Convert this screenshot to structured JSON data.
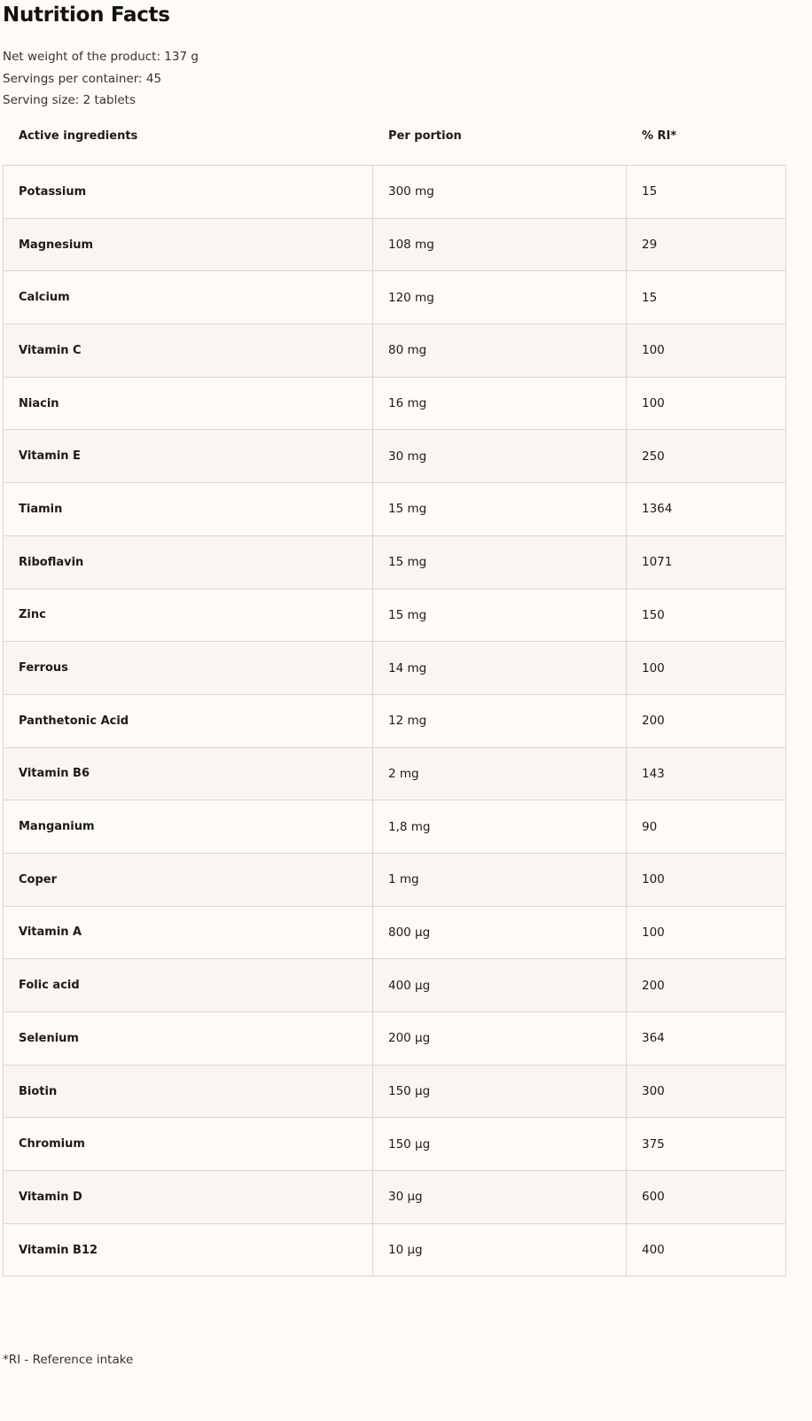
{
  "title": "Nutrition Facts",
  "net_weight": "Net weight of the product: 137 g",
  "servings": "Servings per container: 45",
  "serving_size": "Serving size: 2 tablets",
  "table": {
    "headers": [
      "Active ingredients",
      "Per portion",
      "% RI*"
    ],
    "rows": [
      [
        "Potassium",
        "300 mg",
        "15"
      ],
      [
        "Magnesium",
        "108 mg",
        "29"
      ],
      [
        "Calcium",
        "120 mg",
        "15"
      ],
      [
        "Vitamin C",
        "80 mg",
        "100"
      ],
      [
        "Niacin",
        "16 mg",
        "100"
      ],
      [
        "Vitamin E",
        "30 mg",
        "250"
      ],
      [
        "Tiamin",
        "15 mg",
        "1364"
      ],
      [
        "Riboflavin",
        "15 mg",
        "1071"
      ],
      [
        "Zinc",
        "15 mg",
        "150"
      ],
      [
        "Ferrous",
        "14 mg",
        "100"
      ],
      [
        "Panthetonic Acid",
        "12 mg",
        "200"
      ],
      [
        "Vitamin B6",
        "2 mg",
        "143"
      ],
      [
        "Manganium",
        "1,8 mg",
        "90"
      ],
      [
        "Coper",
        "1 mg",
        "100"
      ],
      [
        "Vitamin A",
        "800 µg",
        "100"
      ],
      [
        "Folic acid",
        "400 µg",
        "200"
      ],
      [
        "Selenium",
        "200 µg",
        "364"
      ],
      [
        "Biotin",
        "150 µg",
        "300"
      ],
      [
        "Chromium",
        "150 µg",
        "375"
      ],
      [
        "Vitamin D",
        "30 µg",
        "600"
      ],
      [
        "Vitamin B12",
        "10 µg",
        "400"
      ]
    ]
  },
  "footnote": "*RI - Reference intake"
}
